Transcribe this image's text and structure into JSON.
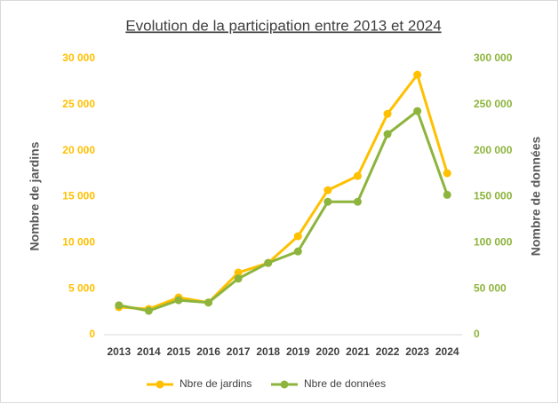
{
  "chart_data": {
    "type": "line",
    "title": "Evolution de la participation entre 2013 et 2024",
    "y_label": "Nombre de jardins",
    "y2_label": "Nombre de données",
    "categories": [
      "2013",
      "2014",
      "2015",
      "2016",
      "2017",
      "2018",
      "2019",
      "2020",
      "2021",
      "2022",
      "2023",
      "2024"
    ],
    "series": [
      {
        "name": "Nbre de jardins",
        "color": "#FFC000",
        "axis": "y",
        "values": [
          3000,
          2800,
          4050,
          3500,
          6750,
          7800,
          10700,
          15700,
          17250,
          24000,
          28250,
          17550
        ]
      },
      {
        "name": "Nbre de données",
        "color": "#8DB43C",
        "axis": "y2",
        "values": [
          32000,
          26000,
          37500,
          35000,
          61000,
          78000,
          90500,
          144500,
          144500,
          218000,
          243000,
          152000
        ]
      }
    ],
    "ylim": [
      0,
      30000
    ],
    "yticks": [
      0,
      {
        "value": 5000,
        "label": "5 000"
      },
      {
        "value": 10000,
        "label": "10 000"
      },
      {
        "value": 15000,
        "label": "15 000"
      },
      {
        "value": 20000,
        "label": "20 000"
      },
      {
        "value": 25000,
        "label": "25 000"
      },
      {
        "value": 30000,
        "label": "30 000"
      }
    ],
    "y2lim": [
      0,
      300000
    ],
    "y2ticks": [
      0,
      {
        "value": 50000,
        "label": "50 000"
      },
      {
        "value": 100000,
        "label": "100 000"
      },
      {
        "value": 150000,
        "label": "150 000"
      },
      {
        "value": 200000,
        "label": "200 000"
      },
      {
        "value": 250000,
        "label": "250 000"
      },
      {
        "value": 300000,
        "label": "300 000"
      }
    ],
    "legend": "bottom"
  }
}
